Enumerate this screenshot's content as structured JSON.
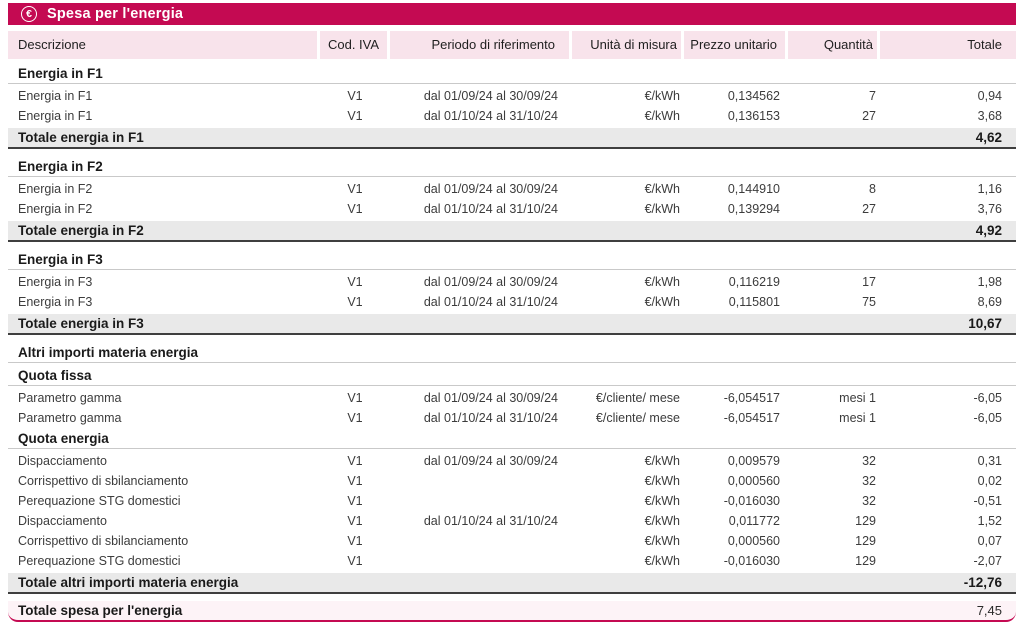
{
  "header": {
    "icon": "€",
    "title": "Spesa per l'energia"
  },
  "colors": {
    "accent": "#c40a52",
    "header_cell_bg": "#f8e3eb",
    "subtotal_bg": "#e9e9e9",
    "grand_total_bg": "#fdf3f7"
  },
  "table": {
    "columns": [
      "Descrizione",
      "Cod. IVA",
      "Periodo di riferimento",
      "Unità di misura",
      "Prezzo unitario",
      "Quantità",
      "Totale"
    ],
    "rows": [
      {
        "type": "group",
        "label": "Energia in F1"
      },
      {
        "type": "item",
        "desc": "Energia in F1",
        "iva": "V1",
        "period": "dal 01/09/24 al 30/09/24",
        "unit": "€/kWh",
        "price": "0,134562",
        "qty": "7",
        "total": "0,94"
      },
      {
        "type": "item",
        "desc": "Energia in F1",
        "iva": "V1",
        "period": "dal 01/10/24 al 31/10/24",
        "unit": "€/kWh",
        "price": "0,136153",
        "qty": "27",
        "total": "3,68"
      },
      {
        "type": "total",
        "label": "Totale energia in F1",
        "total": "4,62"
      },
      {
        "type": "group",
        "label": "Energia in F2"
      },
      {
        "type": "item",
        "desc": "Energia in F2",
        "iva": "V1",
        "period": "dal 01/09/24 al 30/09/24",
        "unit": "€/kWh",
        "price": "0,144910",
        "qty": "8",
        "total": "1,16"
      },
      {
        "type": "item",
        "desc": "Energia in F2",
        "iva": "V1",
        "period": "dal 01/10/24 al 31/10/24",
        "unit": "€/kWh",
        "price": "0,139294",
        "qty": "27",
        "total": "3,76"
      },
      {
        "type": "total",
        "label": "Totale energia in F2",
        "total": "4,92"
      },
      {
        "type": "group",
        "label": "Energia in F3"
      },
      {
        "type": "item",
        "desc": "Energia in F3",
        "iva": "V1",
        "period": "dal 01/09/24 al 30/09/24",
        "unit": "€/kWh",
        "price": "0,116219",
        "qty": "17",
        "total": "1,98"
      },
      {
        "type": "item",
        "desc": "Energia in F3",
        "iva": "V1",
        "period": "dal 01/10/24 al 31/10/24",
        "unit": "€/kWh",
        "price": "0,115801",
        "qty": "75",
        "total": "8,69"
      },
      {
        "type": "total",
        "label": "Totale energia in F3",
        "total": "10,67"
      },
      {
        "type": "group",
        "label": "Altri importi materia energia"
      },
      {
        "type": "group",
        "label": "Quota fissa"
      },
      {
        "type": "item",
        "desc": "Parametro gamma",
        "iva": "V1",
        "period": "dal 01/09/24 al 30/09/24",
        "unit": "€/cliente/ mese",
        "price": "-6,054517",
        "qty": "mesi 1",
        "total": "-6,05"
      },
      {
        "type": "item",
        "desc": "Parametro gamma",
        "iva": "V1",
        "period": "dal 01/10/24 al 31/10/24",
        "unit": "€/cliente/ mese",
        "price": "-6,054517",
        "qty": "mesi 1",
        "total": "-6,05"
      },
      {
        "type": "group",
        "label": "Quota energia"
      },
      {
        "type": "item",
        "desc": "Dispacciamento",
        "iva": "V1",
        "period": "dal 01/09/24 al 30/09/24",
        "unit": "€/kWh",
        "price": "0,009579",
        "qty": "32",
        "total": "0,31"
      },
      {
        "type": "item",
        "desc": "Corrispettivo di sbilanciamento",
        "iva": "V1",
        "period": "",
        "unit": "€/kWh",
        "price": "0,000560",
        "qty": "32",
        "total": "0,02"
      },
      {
        "type": "item",
        "desc": "Perequazione STG domestici",
        "iva": "V1",
        "period": "",
        "unit": "€/kWh",
        "price": "-0,016030",
        "qty": "32",
        "total": "-0,51"
      },
      {
        "type": "item",
        "desc": "Dispacciamento",
        "iva": "V1",
        "period": "dal 01/10/24 al 31/10/24",
        "unit": "€/kWh",
        "price": "0,011772",
        "qty": "129",
        "total": "1,52"
      },
      {
        "type": "item",
        "desc": "Corrispettivo di sbilanciamento",
        "iva": "V1",
        "period": "",
        "unit": "€/kWh",
        "price": "0,000560",
        "qty": "129",
        "total": "0,07"
      },
      {
        "type": "item",
        "desc": "Perequazione STG domestici",
        "iva": "V1",
        "period": "",
        "unit": "€/kWh",
        "price": "-0,016030",
        "qty": "129",
        "total": "-2,07"
      },
      {
        "type": "total",
        "label": "Totale altri importi materia energia",
        "total": "-12,76"
      },
      {
        "type": "grand",
        "label": "Totale spesa per l'energia",
        "total": "7,45"
      }
    ]
  }
}
